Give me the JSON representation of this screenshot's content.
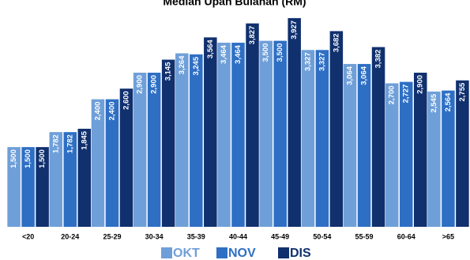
{
  "chart_data": {
    "type": "bar",
    "title": "Median Upah Bulanan (RM)",
    "categories": [
      "<20",
      "20-24",
      "25-29",
      "30-34",
      "35-39",
      "40-44",
      "45-49",
      "50-54",
      "55-59",
      "60-64",
      ">65"
    ],
    "series": [
      {
        "name": "OKT",
        "color": "#6f9fd8",
        "values": [
          1500,
          1782,
          2400,
          2900,
          3264,
          3464,
          3500,
          3327,
          3064,
          2700,
          2545
        ],
        "value_labels": [
          "1,500",
          "1,782",
          "2,400",
          "2,900",
          "3,264",
          "3,464",
          "3,500",
          "3,327",
          "3,064",
          "2,700",
          "2,545"
        ]
      },
      {
        "name": "NOV",
        "color": "#2e6fc4",
        "values": [
          1500,
          1782,
          2400,
          2900,
          3245,
          3464,
          3500,
          3327,
          3064,
          2727,
          2564
        ],
        "value_labels": [
          "1,500",
          "1,782",
          "2,400",
          "2,900",
          "3,245",
          "3,464",
          "3,500",
          "3,327",
          "3,064",
          "2,727",
          "2,564"
        ]
      },
      {
        "name": "DIS",
        "color": "#10306e",
        "values": [
          1500,
          1845,
          2600,
          3145,
          3564,
          3827,
          3927,
          3682,
          3382,
          2900,
          2755
        ],
        "value_labels": [
          "1,500",
          "1,845",
          "2,600",
          "3,145",
          "3,564",
          "3,827",
          "3,927",
          "3,682",
          "3,382",
          "2,900",
          "2,755"
        ]
      }
    ],
    "ylim": [
      0,
      4000
    ],
    "legend": "bottom"
  }
}
